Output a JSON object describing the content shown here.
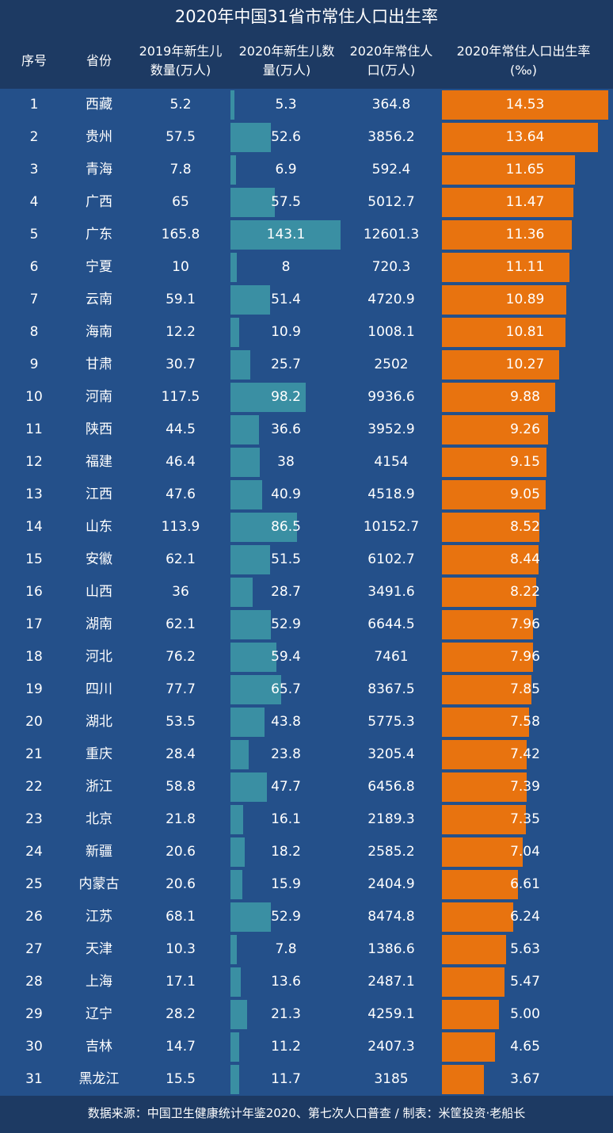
{
  "title": "2020年中国31省市常住人口出生率",
  "headers": [
    "序号",
    "省份",
    "2019年新生儿数量(万人)",
    "2020年新生儿数量(万人)",
    "2020年常住人口(万人)",
    "2020年常住人口出生率(‰)"
  ],
  "colors": {
    "header_bg": "#1d3a63",
    "body_bg": "#24508a",
    "births_bar": "#3a8fa3",
    "rate_bar": "#e8730f"
  },
  "chart_data": {
    "type": "table",
    "title": "2020年中国31省市常住人口出生率",
    "columns": [
      "序号",
      "省份",
      "2019年新生儿数量(万人)",
      "2020年新生儿数量(万人)",
      "2020年常住人口(万人)",
      "2020年常住人口出生率(‰)"
    ],
    "rows": [
      [
        "1",
        "西藏",
        "5.2",
        "5.3",
        "364.8",
        "14.53"
      ],
      [
        "2",
        "贵州",
        "57.5",
        "52.6",
        "3856.2",
        "13.64"
      ],
      [
        "3",
        "青海",
        "7.8",
        "6.9",
        "592.4",
        "11.65"
      ],
      [
        "4",
        "广西",
        "65",
        "57.5",
        "5012.7",
        "11.47"
      ],
      [
        "5",
        "广东",
        "165.8",
        "143.1",
        "12601.3",
        "11.36"
      ],
      [
        "6",
        "宁夏",
        "10",
        "8",
        "720.3",
        "11.11"
      ],
      [
        "7",
        "云南",
        "59.1",
        "51.4",
        "4720.9",
        "10.89"
      ],
      [
        "8",
        "海南",
        "12.2",
        "10.9",
        "1008.1",
        "10.81"
      ],
      [
        "9",
        "甘肃",
        "30.7",
        "25.7",
        "2502",
        "10.27"
      ],
      [
        "10",
        "河南",
        "117.5",
        "98.2",
        "9936.6",
        "9.88"
      ],
      [
        "11",
        "陕西",
        "44.5",
        "36.6",
        "3952.9",
        "9.26"
      ],
      [
        "12",
        "福建",
        "46.4",
        "38",
        "4154",
        "9.15"
      ],
      [
        "13",
        "江西",
        "47.6",
        "40.9",
        "4518.9",
        "9.05"
      ],
      [
        "14",
        "山东",
        "113.9",
        "86.5",
        "10152.7",
        "8.52"
      ],
      [
        "15",
        "安徽",
        "62.1",
        "51.5",
        "6102.7",
        "8.44"
      ],
      [
        "16",
        "山西",
        "36",
        "28.7",
        "3491.6",
        "8.22"
      ],
      [
        "17",
        "湖南",
        "62.1",
        "52.9",
        "6644.5",
        "7.96"
      ],
      [
        "18",
        "河北",
        "76.2",
        "59.4",
        "7461",
        "7.96"
      ],
      [
        "19",
        "四川",
        "77.7",
        "65.7",
        "8367.5",
        "7.85"
      ],
      [
        "20",
        "湖北",
        "53.5",
        "43.8",
        "5775.3",
        "7.58"
      ],
      [
        "21",
        "重庆",
        "28.4",
        "23.8",
        "3205.4",
        "7.42"
      ],
      [
        "22",
        "浙江",
        "58.8",
        "47.7",
        "6456.8",
        "7.39"
      ],
      [
        "23",
        "北京",
        "21.8",
        "16.1",
        "2189.3",
        "7.35"
      ],
      [
        "24",
        "新疆",
        "20.6",
        "18.2",
        "2585.2",
        "7.04"
      ],
      [
        "25",
        "内蒙古",
        "20.6",
        "15.9",
        "2404.9",
        "6.61"
      ],
      [
        "26",
        "江苏",
        "68.1",
        "52.9",
        "8474.8",
        "6.24"
      ],
      [
        "27",
        "天津",
        "10.3",
        "7.8",
        "1386.6",
        "5.63"
      ],
      [
        "28",
        "上海",
        "17.1",
        "13.6",
        "2487.1",
        "5.47"
      ],
      [
        "29",
        "辽宁",
        "28.2",
        "21.3",
        "4259.1",
        "5.00"
      ],
      [
        "30",
        "吉林",
        "14.7",
        "11.2",
        "2407.3",
        "4.65"
      ],
      [
        "31",
        "黑龙江",
        "15.5",
        "11.7",
        "3185",
        "3.67"
      ]
    ]
  },
  "footer": "数据来源：中国卫生健康统计年鉴2020、第七次人口普查 / 制表：米筐投资·老船长"
}
